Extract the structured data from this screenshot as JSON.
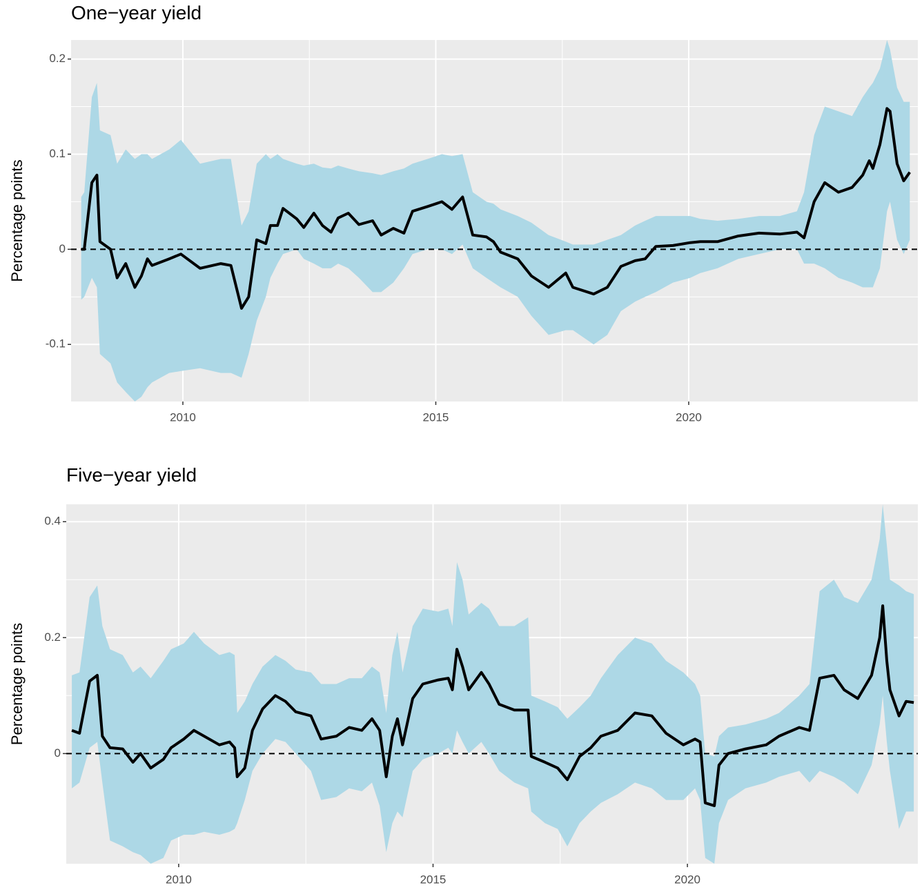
{
  "chart_data": [
    {
      "type": "line",
      "title": "One−year yield",
      "y_label": "Percentage points",
      "xlim": [
        2007.79,
        2024.53
      ],
      "xticks": [
        2010,
        2015,
        2020
      ],
      "ylim": [
        -0.16,
        0.22
      ],
      "yticks": [
        -0.1,
        0.0,
        0.1,
        0.2
      ],
      "grid": true,
      "hline": 0,
      "line_color": "#000000",
      "band_color": "#add8e6",
      "x": [
        2007.99,
        2008.05,
        2008.2,
        2008.3,
        2008.36,
        2008.57,
        2008.7,
        2008.87,
        2009.05,
        2009.18,
        2009.3,
        2009.39,
        2009.73,
        2009.96,
        2010.34,
        2010.75,
        2010.95,
        2011.16,
        2011.3,
        2011.46,
        2011.64,
        2011.73,
        2011.87,
        2011.98,
        2012.25,
        2012.39,
        2012.59,
        2012.76,
        2012.93,
        2013.07,
        2013.27,
        2013.48,
        2013.75,
        2013.92,
        2014.16,
        2014.37,
        2014.54,
        2014.84,
        2015.12,
        2015.32,
        2015.53,
        2015.73,
        2016.0,
        2016.14,
        2016.28,
        2016.62,
        2016.89,
        2017.23,
        2017.57,
        2017.71,
        2018.12,
        2018.39,
        2018.66,
        2018.94,
        2019.14,
        2019.35,
        2019.69,
        2020.03,
        2020.23,
        2020.57,
        2020.98,
        2021.39,
        2021.8,
        2022.14,
        2022.28,
        2022.48,
        2022.69,
        2022.96,
        2023.23,
        2023.44,
        2023.57,
        2023.64,
        2023.78,
        2023.92,
        2023.98,
        2024.12,
        2024.25,
        2024.37
      ],
      "values": [
        0.0,
        0.0,
        0.07,
        0.078,
        0.008,
        0.0,
        -0.03,
        -0.015,
        -0.04,
        -0.028,
        -0.01,
        -0.017,
        -0.01,
        -0.005,
        -0.02,
        -0.015,
        -0.017,
        -0.062,
        -0.05,
        0.01,
        0.006,
        0.025,
        0.025,
        0.043,
        0.032,
        0.023,
        0.038,
        0.025,
        0.018,
        0.033,
        0.038,
        0.026,
        0.03,
        0.015,
        0.022,
        0.017,
        0.04,
        0.045,
        0.05,
        0.042,
        0.055,
        0.015,
        0.013,
        0.008,
        -0.003,
        -0.01,
        -0.028,
        -0.04,
        -0.025,
        -0.04,
        -0.047,
        -0.04,
        -0.018,
        -0.012,
        -0.01,
        0.003,
        0.004,
        0.007,
        0.008,
        0.008,
        0.014,
        0.017,
        0.016,
        0.018,
        0.012,
        0.05,
        0.07,
        0.06,
        0.065,
        0.078,
        0.093,
        0.085,
        0.11,
        0.148,
        0.145,
        0.09,
        0.072,
        0.081
      ],
      "lower": [
        -0.053,
        -0.05,
        -0.03,
        -0.04,
        -0.11,
        -0.12,
        -0.14,
        -0.15,
        -0.16,
        -0.155,
        -0.145,
        -0.14,
        -0.13,
        -0.128,
        -0.125,
        -0.13,
        -0.13,
        -0.135,
        -0.11,
        -0.075,
        -0.05,
        -0.03,
        -0.015,
        -0.005,
        0.0,
        -0.01,
        -0.015,
        -0.02,
        -0.02,
        -0.015,
        -0.02,
        -0.03,
        -0.045,
        -0.045,
        -0.035,
        -0.02,
        -0.005,
        0.0,
        0.0,
        -0.005,
        0.005,
        -0.02,
        -0.03,
        -0.035,
        -0.04,
        -0.05,
        -0.07,
        -0.09,
        -0.085,
        -0.085,
        -0.1,
        -0.09,
        -0.065,
        -0.055,
        -0.05,
        -0.045,
        -0.035,
        -0.03,
        -0.025,
        -0.02,
        -0.01,
        -0.005,
        0.0,
        0.0,
        -0.015,
        -0.015,
        -0.02,
        -0.03,
        -0.035,
        -0.04,
        -0.04,
        -0.04,
        -0.02,
        0.04,
        0.05,
        0.01,
        -0.005,
        0.01
      ],
      "upper": [
        0.055,
        0.06,
        0.16,
        0.175,
        0.125,
        0.12,
        0.09,
        0.105,
        0.095,
        0.1,
        0.1,
        0.095,
        0.105,
        0.115,
        0.09,
        0.095,
        0.095,
        0.025,
        0.04,
        0.09,
        0.1,
        0.095,
        0.1,
        0.095,
        0.09,
        0.088,
        0.09,
        0.086,
        0.085,
        0.088,
        0.085,
        0.082,
        0.08,
        0.078,
        0.082,
        0.085,
        0.09,
        0.095,
        0.1,
        0.098,
        0.1,
        0.06,
        0.05,
        0.048,
        0.042,
        0.035,
        0.028,
        0.015,
        0.008,
        0.005,
        0.005,
        0.01,
        0.015,
        0.025,
        0.03,
        0.035,
        0.035,
        0.035,
        0.032,
        0.03,
        0.032,
        0.035,
        0.035,
        0.04,
        0.06,
        0.12,
        0.15,
        0.145,
        0.14,
        0.16,
        0.17,
        0.175,
        0.19,
        0.22,
        0.21,
        0.17,
        0.155,
        0.155
      ]
    },
    {
      "type": "line",
      "title": "Five−year yield",
      "y_label": "Percentage points",
      "xlim": [
        2007.79,
        2024.53
      ],
      "xticks": [
        2010,
        2015,
        2020
      ],
      "ylim": [
        -0.19,
        0.43
      ],
      "yticks": [
        0.0,
        0.2,
        0.4
      ],
      "grid": true,
      "hline": 0,
      "line_color": "#000000",
      "band_color": "#add8e6",
      "x": [
        2007.9,
        2008.05,
        2008.25,
        2008.4,
        2008.5,
        2008.65,
        2008.9,
        2009.1,
        2009.25,
        2009.45,
        2009.7,
        2009.85,
        2010.1,
        2010.3,
        2010.5,
        2010.8,
        2011.0,
        2011.1,
        2011.15,
        2011.3,
        2011.45,
        2011.65,
        2011.9,
        2012.1,
        2012.3,
        2012.6,
        2012.8,
        2013.1,
        2013.35,
        2013.6,
        2013.8,
        2013.95,
        2014.08,
        2014.2,
        2014.3,
        2014.4,
        2014.6,
        2014.8,
        2015.1,
        2015.3,
        2015.38,
        2015.47,
        2015.58,
        2015.7,
        2015.95,
        2016.1,
        2016.3,
        2016.6,
        2016.87,
        2016.93,
        2017.2,
        2017.45,
        2017.64,
        2017.88,
        2018.1,
        2018.3,
        2018.63,
        2018.97,
        2019.3,
        2019.58,
        2019.92,
        2020.15,
        2020.25,
        2020.35,
        2020.53,
        2020.62,
        2020.8,
        2021.14,
        2021.55,
        2021.8,
        2022.2,
        2022.4,
        2022.6,
        2022.88,
        2023.08,
        2023.35,
        2023.62,
        2023.78,
        2023.84,
        2023.92,
        2023.98,
        2024.16,
        2024.3,
        2024.45
      ],
      "values": [
        0.04,
        0.035,
        0.125,
        0.135,
        0.03,
        0.01,
        0.008,
        -0.015,
        0.0,
        -0.025,
        -0.01,
        0.01,
        0.025,
        0.04,
        0.03,
        0.015,
        0.02,
        0.01,
        -0.04,
        -0.025,
        0.04,
        0.077,
        0.1,
        0.09,
        0.072,
        0.065,
        0.025,
        0.03,
        0.045,
        0.04,
        0.06,
        0.04,
        -0.04,
        0.03,
        0.06,
        0.015,
        0.095,
        0.12,
        0.127,
        0.13,
        0.11,
        0.18,
        0.15,
        0.11,
        0.14,
        0.12,
        0.085,
        0.075,
        0.075,
        -0.005,
        -0.015,
        -0.025,
        -0.045,
        -0.005,
        0.01,
        0.03,
        0.04,
        0.07,
        0.065,
        0.035,
        0.015,
        0.025,
        0.02,
        -0.085,
        -0.09,
        -0.02,
        0.0,
        0.008,
        0.015,
        0.03,
        0.045,
        0.04,
        0.13,
        0.135,
        0.11,
        0.095,
        0.135,
        0.2,
        0.255,
        0.16,
        0.11,
        0.065,
        0.09,
        0.088
      ],
      "lower": [
        -0.06,
        -0.05,
        0.01,
        0.02,
        -0.05,
        -0.15,
        -0.16,
        -0.17,
        -0.175,
        -0.19,
        -0.18,
        -0.15,
        -0.14,
        -0.14,
        -0.135,
        -0.14,
        -0.135,
        -0.13,
        -0.12,
        -0.08,
        -0.03,
        0.0,
        0.025,
        0.02,
        0.0,
        -0.03,
        -0.08,
        -0.075,
        -0.06,
        -0.065,
        -0.05,
        -0.09,
        -0.17,
        -0.12,
        -0.1,
        -0.11,
        -0.03,
        -0.01,
        0.0,
        0.01,
        0.0,
        0.04,
        0.02,
        0.0,
        0.02,
        0.0,
        -0.03,
        -0.05,
        -0.06,
        -0.1,
        -0.12,
        -0.13,
        -0.16,
        -0.12,
        -0.1,
        -0.085,
        -0.07,
        -0.05,
        -0.06,
        -0.08,
        -0.08,
        -0.06,
        -0.08,
        -0.18,
        -0.19,
        -0.12,
        -0.08,
        -0.06,
        -0.05,
        -0.04,
        -0.03,
        -0.05,
        -0.03,
        -0.04,
        -0.05,
        -0.07,
        -0.02,
        0.05,
        0.1,
        0.02,
        -0.03,
        -0.13,
        -0.1,
        -0.1
      ],
      "upper": [
        0.135,
        0.14,
        0.27,
        0.29,
        0.22,
        0.18,
        0.17,
        0.14,
        0.15,
        0.13,
        0.16,
        0.18,
        0.19,
        0.21,
        0.19,
        0.17,
        0.175,
        0.17,
        0.07,
        0.09,
        0.12,
        0.15,
        0.17,
        0.16,
        0.145,
        0.14,
        0.12,
        0.12,
        0.13,
        0.13,
        0.15,
        0.14,
        0.07,
        0.17,
        0.21,
        0.14,
        0.22,
        0.25,
        0.245,
        0.25,
        0.22,
        0.33,
        0.3,
        0.24,
        0.26,
        0.25,
        0.22,
        0.22,
        0.235,
        0.1,
        0.09,
        0.08,
        0.06,
        0.08,
        0.1,
        0.13,
        0.17,
        0.2,
        0.19,
        0.16,
        0.14,
        0.12,
        0.1,
        0.0,
        -0.005,
        0.03,
        0.045,
        0.05,
        0.06,
        0.07,
        0.1,
        0.12,
        0.28,
        0.3,
        0.27,
        0.26,
        0.3,
        0.37,
        0.43,
        0.36,
        0.3,
        0.29,
        0.28,
        0.275
      ]
    }
  ]
}
